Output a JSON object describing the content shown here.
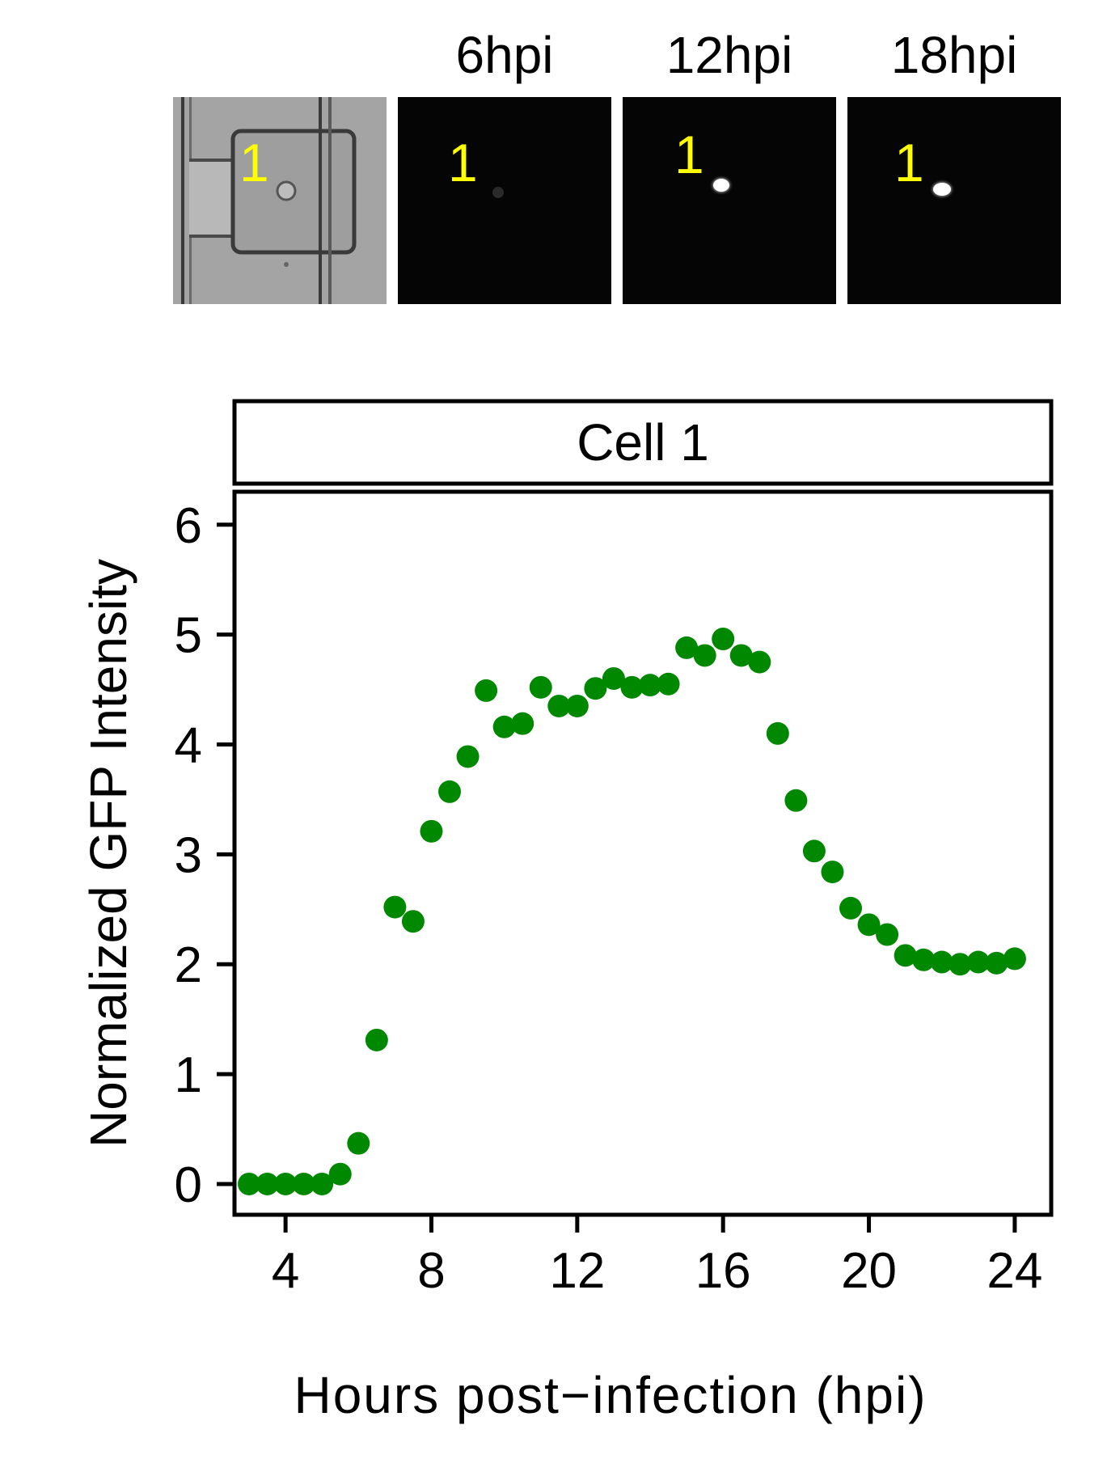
{
  "panels": [
    {
      "label": "",
      "cell_label": "1",
      "kind": "brightfield"
    },
    {
      "label": "6hpi",
      "cell_label": "1",
      "kind": "fluorescence",
      "intensity": "dim"
    },
    {
      "label": "12hpi",
      "cell_label": "1",
      "kind": "fluorescence",
      "intensity": "bright"
    },
    {
      "label": "18hpi",
      "cell_label": "1",
      "kind": "fluorescence",
      "intensity": "bright"
    }
  ],
  "chart_data": {
    "type": "scatter",
    "facet_title": "Cell 1",
    "xlabel": "Hours post−infection (hpi)",
    "ylabel": "Normalized GFP Intensity",
    "xlim": [
      2.6,
      25.0
    ],
    "ylim": [
      -0.28,
      6.3
    ],
    "xticks": [
      4,
      8,
      12,
      16,
      20,
      24
    ],
    "yticks": [
      0,
      1,
      2,
      3,
      4,
      5,
      6
    ],
    "point_color": "#008800",
    "grid": false,
    "x": [
      3,
      3.5,
      4,
      4.5,
      5,
      5.5,
      6,
      6.5,
      7,
      7.5,
      8,
      8.5,
      9,
      9.5,
      10,
      10.5,
      11,
      11.5,
      12,
      12.5,
      13,
      13.5,
      14,
      14.5,
      15,
      15.5,
      16,
      16.5,
      17,
      17.5,
      18,
      18.5,
      19,
      19.5,
      20,
      20.5,
      21,
      21.5,
      22,
      22.5,
      23,
      23.5,
      24
    ],
    "y": [
      0.0,
      0.0,
      0.0,
      0.0,
      0.0,
      0.09,
      0.37,
      1.31,
      2.52,
      2.39,
      3.21,
      3.57,
      3.89,
      4.49,
      4.16,
      4.19,
      4.52,
      4.35,
      4.35,
      4.51,
      4.6,
      4.52,
      4.54,
      4.55,
      4.88,
      4.81,
      4.96,
      4.81,
      4.75,
      4.1,
      3.49,
      3.03,
      2.84,
      2.51,
      2.36,
      2.27,
      2.08,
      2.04,
      2.02,
      2.0,
      2.02,
      2.01,
      2.05
    ]
  }
}
